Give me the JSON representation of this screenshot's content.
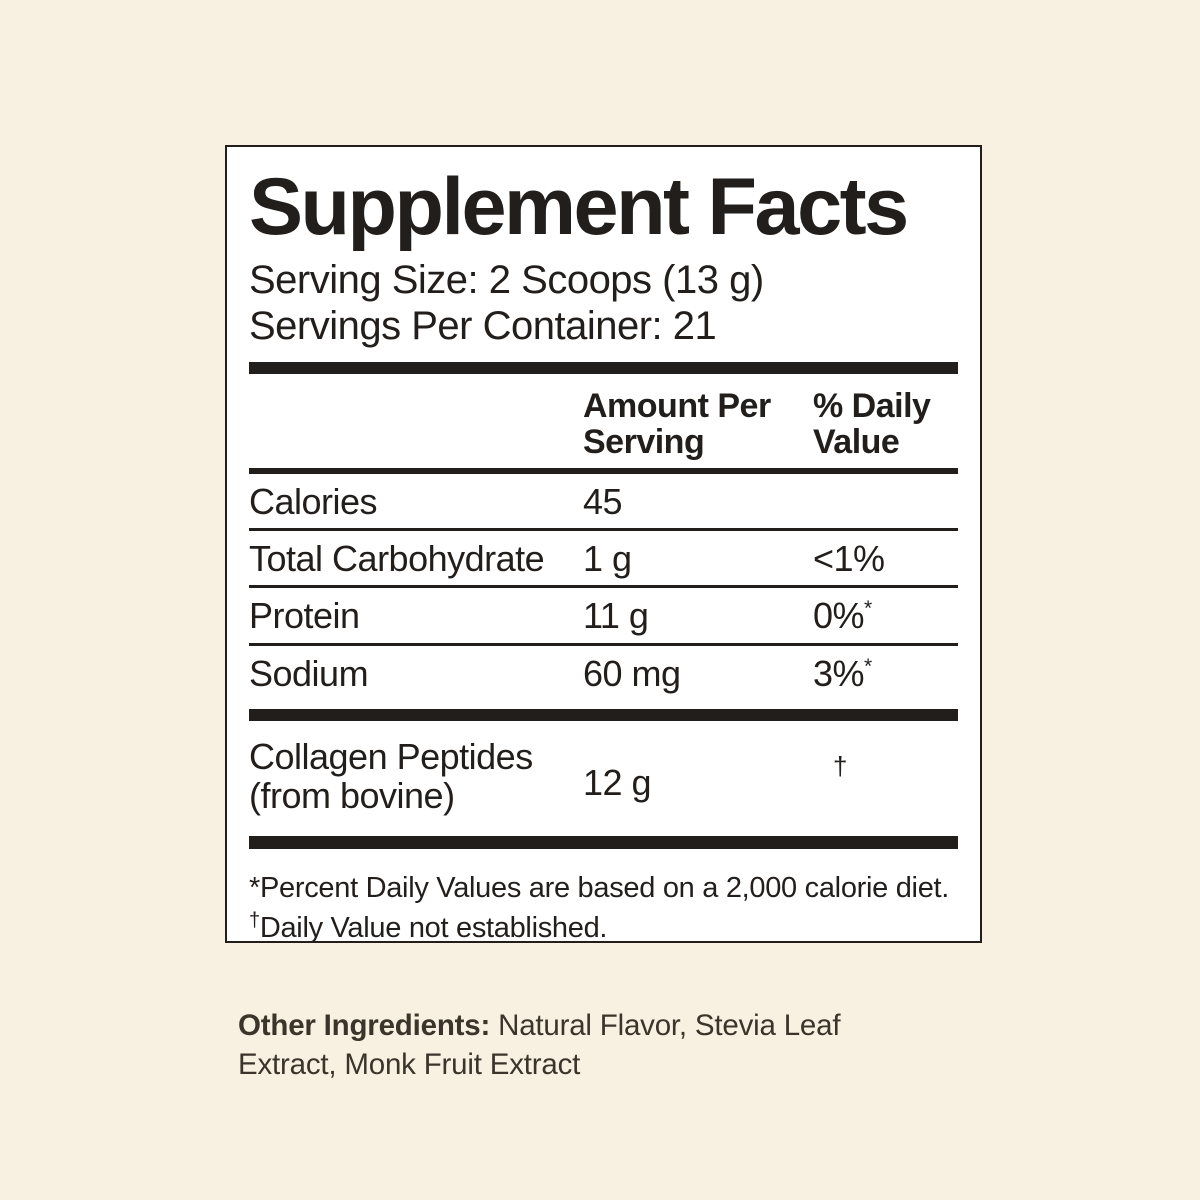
{
  "colors": {
    "background": "#f8f1e1",
    "panel": "#ffffff",
    "ink": "#221e1c",
    "ingredients_text": "#3b342b"
  },
  "label": {
    "title": "Supplement Facts",
    "serving_size": "Serving Size: 2 Scoops (13 g)",
    "servings_per_container": "Servings Per Container: 21",
    "header": {
      "amount": "Amount Per Serving",
      "daily_value": "% Daily Value"
    },
    "rows": [
      {
        "name": "Calories",
        "amount": "45",
        "dv": "",
        "dv_note": ""
      },
      {
        "name": "Total Carbohydrate",
        "amount": "1 g",
        "dv": "<1%",
        "dv_note": ""
      },
      {
        "name": "Protein",
        "amount": "11 g",
        "dv": "0%",
        "dv_note": "*"
      },
      {
        "name": "Sodium",
        "amount": "60 mg",
        "dv": "3%",
        "dv_note": "*"
      }
    ],
    "collagen": {
      "name_line1": "Collagen Peptides",
      "name_line2": "(from bovine)",
      "amount": "12 g",
      "dv": "†"
    },
    "footnotes": {
      "fn1": "*Percent Daily Values are based on a 2,000 calorie diet.",
      "fn2_mark": "†",
      "fn2_text": "Daily Value not established."
    }
  },
  "other_ingredients": {
    "label": "Other Ingredients:",
    "text": " Natural Flavor, Stevia Leaf Extract, Monk Fruit Extract"
  }
}
